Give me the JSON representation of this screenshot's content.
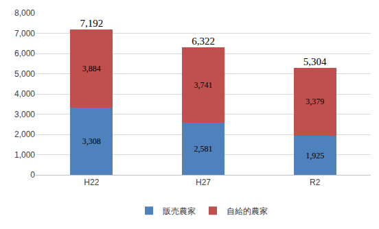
{
  "chart_data": {
    "type": "bar",
    "stacked": true,
    "data_labels": true,
    "grid": true,
    "legend": "bottom",
    "categories": [
      "H22",
      "H27",
      "R2"
    ],
    "series": [
      {
        "name": "販売農家",
        "color": "#4f81bd",
        "values": [
          3308,
          2581,
          1925
        ],
        "value_labels": [
          "3,308",
          "2,581",
          "1,925"
        ]
      },
      {
        "name": "自給的農家",
        "color": "#c0504d",
        "values": [
          3884,
          3741,
          3379
        ],
        "value_labels": [
          "3,884",
          "3,741",
          "3,379"
        ]
      }
    ],
    "totals": {
      "values": [
        7192,
        6322,
        5304
      ],
      "value_labels": [
        "7,192",
        "6,322",
        "5,304"
      ]
    },
    "ylim": [
      0,
      8000
    ],
    "yticks": [
      0,
      {
        "value": 1000,
        "label": "1,000"
      },
      {
        "value": 2000,
        "label": "2,000"
      },
      {
        "value": 3000,
        "label": "3,000"
      },
      {
        "value": 4000,
        "label": "4,000"
      },
      {
        "value": 5000,
        "label": "5,000"
      },
      {
        "value": 6000,
        "label": "6,000"
      },
      {
        "value": 7000,
        "label": "7,000"
      },
      {
        "value": 8000,
        "label": "8,000"
      }
    ]
  }
}
